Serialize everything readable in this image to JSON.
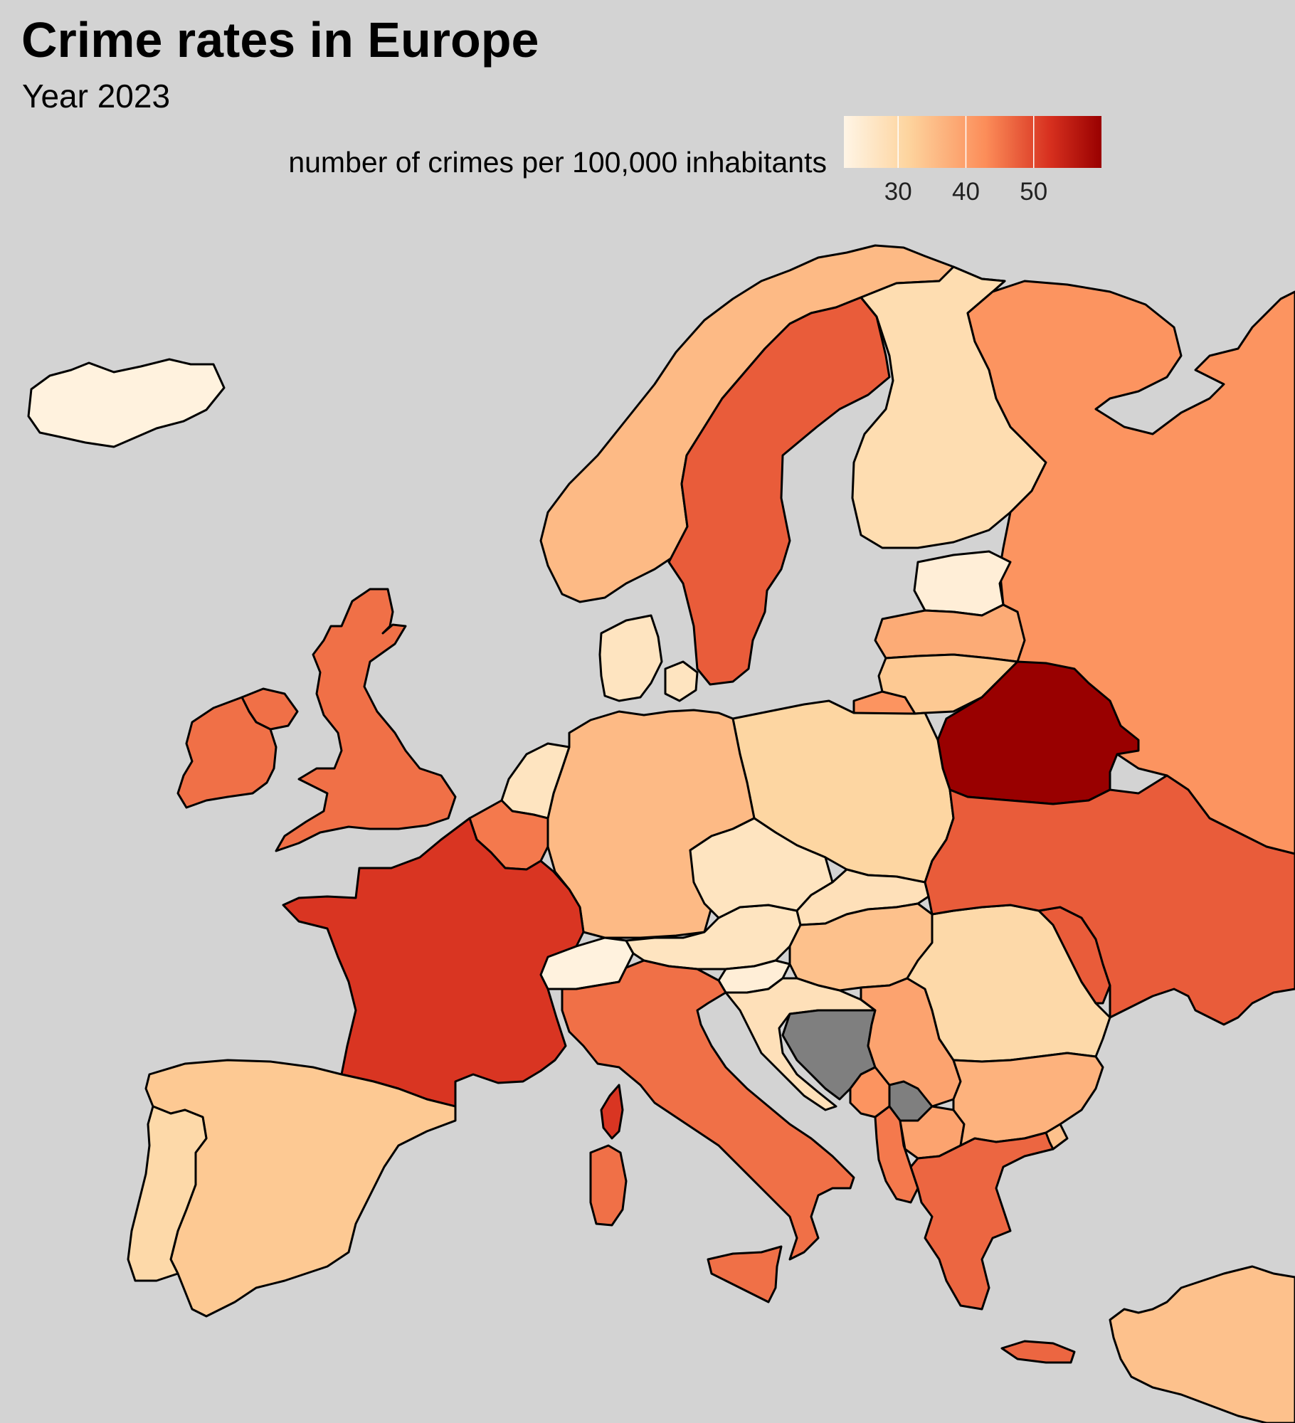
{
  "title": "Crime rates in Europe",
  "subtitle": "Year 2023",
  "legend": {
    "title": "number of crimes per 100,000 inhabitants",
    "ticks": [
      "30",
      "40",
      "50"
    ],
    "tick_values": [
      30,
      40,
      50
    ],
    "range": [
      22,
      60
    ],
    "colors": [
      "#fff5e6",
      "#fdd49e",
      "#fc8d59",
      "#d7301f",
      "#990000"
    ]
  },
  "no_data_color": "#7f7f7f",
  "countries": [
    {
      "name": "Iceland",
      "value": 23
    },
    {
      "name": "Norway",
      "value": 35
    },
    {
      "name": "Sweden",
      "value": 46
    },
    {
      "name": "Finland",
      "value": 29
    },
    {
      "name": "Russia",
      "value": 40
    },
    {
      "name": "Estonia",
      "value": 24
    },
    {
      "name": "Latvia",
      "value": 37
    },
    {
      "name": "Lithuania",
      "value": 33
    },
    {
      "name": "Belarus",
      "value": 60
    },
    {
      "name": "Ukraine",
      "value": 46
    },
    {
      "name": "Moldova",
      "value": 46
    },
    {
      "name": "Poland",
      "value": 31
    },
    {
      "name": "Germany",
      "value": 35
    },
    {
      "name": "Denmark",
      "value": 27
    },
    {
      "name": "Netherlands",
      "value": 27
    },
    {
      "name": "Belgium",
      "value": 43
    },
    {
      "name": "United Kingdom",
      "value": 44
    },
    {
      "name": "Ireland",
      "value": 44
    },
    {
      "name": "France",
      "value": 50
    },
    {
      "name": "Spain",
      "value": 33
    },
    {
      "name": "Portugal",
      "value": 30
    },
    {
      "name": "Italy",
      "value": 44
    },
    {
      "name": "Switzerland",
      "value": 23
    },
    {
      "name": "Austria",
      "value": 27
    },
    {
      "name": "Czechia",
      "value": 27
    },
    {
      "name": "Slovakia",
      "value": 28
    },
    {
      "name": "Hungary",
      "value": 34
    },
    {
      "name": "Slovenia",
      "value": 24
    },
    {
      "name": "Croatia",
      "value": 28
    },
    {
      "name": "Bosnia and Herzegovina",
      "value": null
    },
    {
      "name": "Serbia",
      "value": 38
    },
    {
      "name": "Kosovo",
      "value": null
    },
    {
      "name": "Montenegro",
      "value": 40
    },
    {
      "name": "Albania",
      "value": 43
    },
    {
      "name": "North Macedonia",
      "value": 38
    },
    {
      "name": "Romania",
      "value": 30
    },
    {
      "name": "Bulgaria",
      "value": 36
    },
    {
      "name": "Greece",
      "value": 45
    },
    {
      "name": "Turkey",
      "value": 34
    }
  ]
}
